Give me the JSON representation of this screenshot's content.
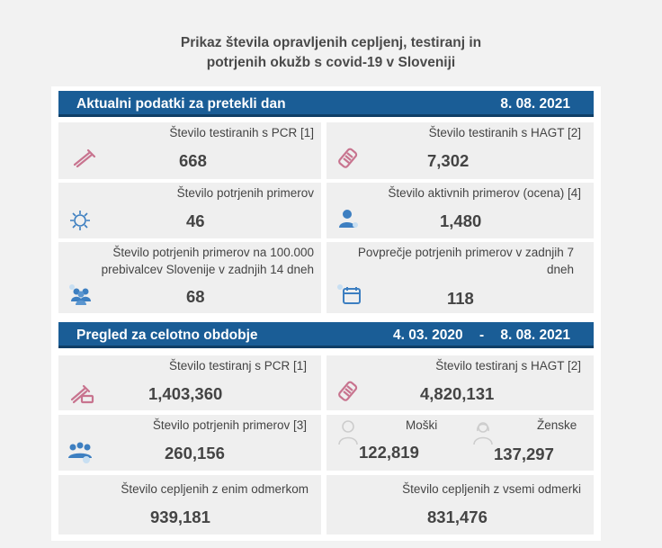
{
  "title": {
    "line1": "Prikaz števila opravljenih cepljenj, testiranj in",
    "line2": "potrjenih okužb s covid-19 v Sloveniji"
  },
  "daily": {
    "header": "Aktualni podatki za pretekli dan",
    "date": "8. 08. 2021",
    "pcr": {
      "label": "Število testiranih s PCR [1]",
      "value": "668"
    },
    "hagt": {
      "label": "Število testiranih s HAGT [2]",
      "value": "7,302"
    },
    "confirmed": {
      "label": "Število potrjenih primerov",
      "value": "46"
    },
    "active": {
      "label": "Število aktivnih primerov (ocena) [4]",
      "value": "1,480"
    },
    "per100k": {
      "label1": "Število potrjenih primerov na 100.000",
      "label2": "prebivalcev Slovenije v zadnjih 14 dneh",
      "value": "68"
    },
    "avg7": {
      "label1": "Povprečje potrjenih primerov v zadnjih 7",
      "label2": "dneh",
      "value": "118"
    }
  },
  "overall": {
    "header": "Pregled za celotno obdobje",
    "date_from": "4. 03. 2020",
    "dash": "-",
    "date_to": "8. 08. 2021",
    "pcr": {
      "label": "Število testiranj s PCR [1]",
      "value": "1,403,360"
    },
    "hagt": {
      "label": "Število testiranj s HAGT [2]",
      "value": "4,820,131"
    },
    "confirmed": {
      "label": "Število potrjenih primerov [3]",
      "value": "260,156"
    },
    "male": {
      "label": "Moški",
      "value": "122,819"
    },
    "female": {
      "label": "Ženske",
      "value": "137,297"
    },
    "vacc1": {
      "label": "Število cepljenih z enim odmerkom",
      "value": "939,181"
    },
    "vacc2": {
      "label": "Število cepljenih z vsemi odmerki",
      "value": "831,476"
    }
  },
  "colors": {
    "header": "#1a5d96",
    "icon_pink": "#c8748f",
    "icon_blue": "#3d7fc1"
  }
}
